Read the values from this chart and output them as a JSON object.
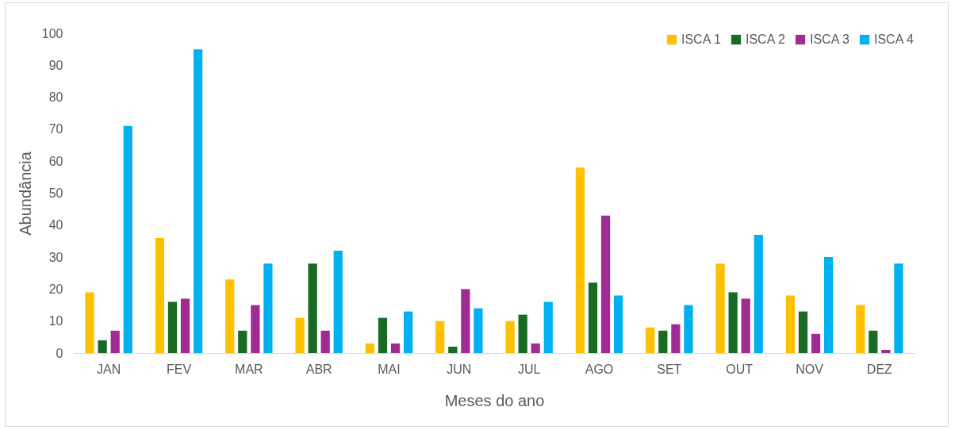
{
  "chart_data": {
    "type": "bar",
    "xlabel": "Meses do ano",
    "ylabel": "Abundância",
    "categories": [
      "JAN",
      "FEV",
      "MAR",
      "ABR",
      "MAI",
      "JUN",
      "JUL",
      "AGO",
      "SET",
      "OUT",
      "NOV",
      "DEZ"
    ],
    "series": [
      {
        "name": "ISCA 1",
        "color": "#ffc000",
        "values": [
          19,
          36,
          23,
          11,
          3,
          10,
          10,
          58,
          8,
          28,
          18,
          15
        ]
      },
      {
        "name": "ISCA 2",
        "color": "#196b24",
        "values": [
          4,
          16,
          7,
          28,
          11,
          2,
          12,
          22,
          7,
          19,
          13,
          7
        ]
      },
      {
        "name": "ISCA 3",
        "color": "#a02b93",
        "values": [
          7,
          17,
          15,
          7,
          3,
          20,
          3,
          43,
          9,
          17,
          6,
          1
        ]
      },
      {
        "name": "ISCA 4",
        "color": "#00b0f0",
        "values": [
          71,
          95,
          28,
          32,
          13,
          14,
          16,
          18,
          15,
          37,
          30,
          28
        ]
      }
    ],
    "ylim": [
      0,
      100
    ],
    "yticks": [
      0,
      10,
      20,
      30,
      40,
      50,
      60,
      70,
      80,
      90,
      100
    ],
    "grid": false,
    "legend": "top right"
  }
}
